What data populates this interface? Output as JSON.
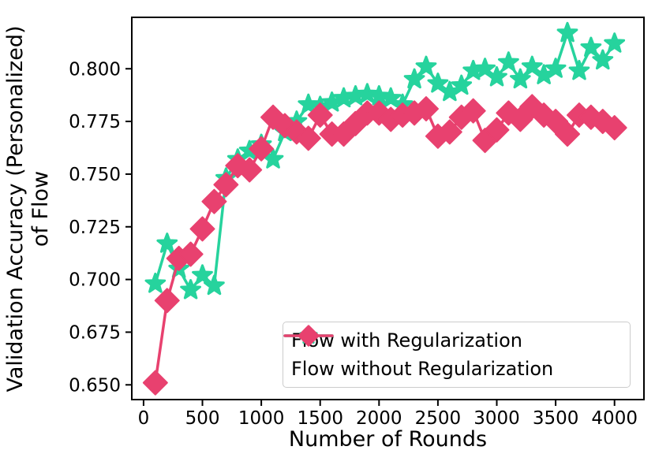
{
  "chart_data": {
    "type": "line",
    "title": "",
    "xlabel": "Number of Rounds",
    "ylabel_line1": "Validation Accuracy (Personalized)",
    "ylabel_line2": "of Flow",
    "grid": false,
    "legend_position": "lower right",
    "legend_border_color": "#cccccc",
    "axis_color": "#000000",
    "background_color": "#ffffff",
    "xlim": [
      -100,
      4250
    ],
    "ylim": [
      0.643,
      0.8244
    ],
    "xticks": [
      0,
      500,
      1000,
      1500,
      2000,
      2500,
      3000,
      3500,
      4000
    ],
    "yticks": [
      0.65,
      0.675,
      0.7,
      0.725,
      0.75,
      0.775,
      0.8
    ],
    "x": [
      100,
      200,
      300,
      400,
      500,
      600,
      700,
      800,
      900,
      1000,
      1100,
      1200,
      1300,
      1400,
      1500,
      1600,
      1700,
      1800,
      1900,
      2000,
      2100,
      2200,
      2300,
      2400,
      2500,
      2600,
      2700,
      2800,
      2900,
      3000,
      3100,
      3200,
      3300,
      3400,
      3500,
      3600,
      3700,
      3800,
      3900,
      4000
    ],
    "series": [
      {
        "name": "Flow with Regularization",
        "color": "#26d39d",
        "marker": "star",
        "values": [
          0.698,
          0.717,
          0.705,
          0.695,
          0.702,
          0.697,
          0.748,
          0.757,
          0.761,
          0.764,
          0.757,
          0.77,
          0.775,
          0.783,
          0.782,
          0.784,
          0.786,
          0.787,
          0.788,
          0.787,
          0.786,
          0.783,
          0.795,
          0.801,
          0.793,
          0.789,
          0.792,
          0.799,
          0.8,
          0.796,
          0.803,
          0.795,
          0.801,
          0.797,
          0.8,
          0.817,
          0.799,
          0.81,
          0.804,
          0.812
        ]
      },
      {
        "name": "Flow without Regularization",
        "color": "#e8416f",
        "marker": "diamond",
        "values": [
          0.651,
          0.69,
          0.71,
          0.712,
          0.724,
          0.737,
          0.745,
          0.754,
          0.752,
          0.762,
          0.777,
          0.773,
          0.77,
          0.767,
          0.778,
          0.769,
          0.769,
          0.774,
          0.779,
          0.779,
          0.776,
          0.778,
          0.779,
          0.781,
          0.768,
          0.77,
          0.777,
          0.78,
          0.766,
          0.771,
          0.779,
          0.776,
          0.782,
          0.778,
          0.775,
          0.769,
          0.778,
          0.777,
          0.775,
          0.772
        ]
      }
    ]
  }
}
